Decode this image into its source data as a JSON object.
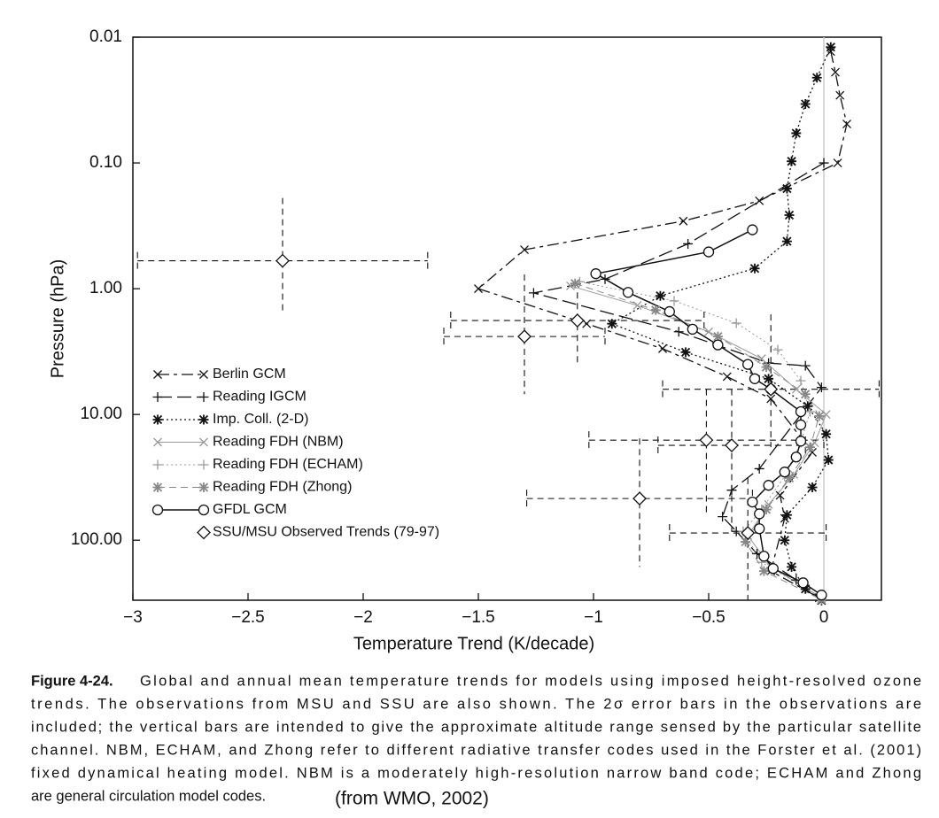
{
  "chart_data": {
    "type": "profile",
    "xlabel": "Temperature Trend (K/decade)",
    "ylabel": "Pressure (hPa)",
    "xlim": [
      -3,
      0.25
    ],
    "ylim": [
      0.01,
      300
    ],
    "ylog": true,
    "yinverted": true,
    "xticks": [
      {
        "value": -3,
        "label": "−3"
      },
      {
        "value": -2.5,
        "label": "−2.5"
      },
      {
        "value": -2,
        "label": "−2"
      },
      {
        "value": -1.5,
        "label": "−1.5"
      },
      {
        "value": -1,
        "label": "−1"
      },
      {
        "value": -0.5,
        "label": "−0.5"
      },
      0
    ],
    "yticks": [
      {
        "value": 0.01,
        "label": "0.01"
      },
      {
        "value": 0.1,
        "label": "0.10"
      },
      {
        "value": 1,
        "label": "1.00"
      },
      {
        "value": 10,
        "label": "10.00"
      },
      {
        "value": 100,
        "label": "100.00"
      }
    ],
    "series": [
      {
        "name": "Berlin GCM",
        "color": "#111111",
        "marker": "x",
        "dash": "13 5 4 5",
        "width": 1.3,
        "x": [
          0.03,
          0.05,
          0.07,
          0.1,
          0.06,
          -0.28,
          -0.61,
          -1.3,
          -1.5,
          -1.03,
          -0.7,
          -0.42,
          -0.23,
          -0.05,
          -0.19,
          -0.17,
          -0.23,
          -0.02
        ],
        "y": [
          0.013,
          0.019,
          0.029,
          0.049,
          0.1,
          0.2,
          0.29,
          0.49,
          1.0,
          1.9,
          3.0,
          5.0,
          7.5,
          20,
          44,
          67,
          176,
          287
        ]
      },
      {
        "name": "Reading IGCM",
        "color": "#111111",
        "marker": "+",
        "dash": "16 6",
        "width": 1.3,
        "x": [
          0,
          -0.59,
          -0.95,
          -1.26,
          -0.63,
          -0.24,
          -0.08,
          -0.01,
          -0.28,
          -0.4,
          -0.44,
          -0.38,
          -0.29,
          -0.12,
          -0.01
        ],
        "y": [
          0.1,
          0.44,
          0.84,
          1.08,
          2.2,
          3.9,
          4.1,
          6.1,
          27,
          40,
          65,
          85,
          128,
          207,
          301
        ]
      },
      {
        "name": "Imp. Coll. (2-D)",
        "color": "#111111",
        "marker": "*",
        "dash": "2 3",
        "width": 1.3,
        "x": [
          0.03,
          -0.03,
          -0.08,
          -0.12,
          -0.14,
          -0.16,
          -0.15,
          -0.16,
          -0.3,
          -0.71,
          -0.92,
          -0.6,
          -0.24,
          -0.07,
          0.01,
          0.02,
          -0.05,
          -0.16,
          -0.17,
          -0.14,
          -0.08,
          -0.01
        ],
        "y": [
          0.012,
          0.021,
          0.034,
          0.058,
          0.097,
          0.16,
          0.26,
          0.42,
          0.69,
          1.14,
          1.9,
          3.2,
          5.2,
          8.6,
          14.3,
          23,
          38,
          63,
          100,
          163,
          244,
          301
        ]
      },
      {
        "name": "Reading FDH (NBM)",
        "color": "#999999",
        "marker": "x",
        "dash": "",
        "width": 1,
        "x": [
          -1.1,
          -0.81,
          -0.5,
          -0.27,
          -0.12,
          0.01,
          -0.04,
          -0.13,
          -0.24,
          -0.33,
          -0.23,
          -0.01
        ],
        "y": [
          0.95,
          1.36,
          2.2,
          3.6,
          6.3,
          10,
          16.8,
          30,
          52,
          92,
          163,
          286
        ]
      },
      {
        "name": "Reading FDH (ECHAM)",
        "color": "#999999",
        "marker": "+",
        "dash": "2 3",
        "width": 1,
        "x": [
          -1.06,
          -0.65,
          -0.38,
          -0.2,
          -0.1,
          -0.06,
          -0.1,
          -0.17,
          -0.27,
          -0.35,
          -0.27,
          -0.01
        ],
        "y": [
          0.88,
          1.25,
          1.88,
          3.06,
          5.4,
          9.5,
          16.8,
          31,
          57,
          85,
          150,
          286
        ]
      },
      {
        "name": "Reading FDH (Zhong)",
        "color": "#888888",
        "marker": "*",
        "dash": "8 5",
        "width": 1,
        "x": [
          -1.08,
          -0.73,
          -0.46,
          -0.25,
          -0.08,
          -0.02,
          -0.06,
          -0.15,
          -0.25,
          -0.34,
          -0.26,
          -0.01
        ],
        "y": [
          0.91,
          1.48,
          2.4,
          4.2,
          6.9,
          10.3,
          18.2,
          32,
          57,
          103,
          176,
          297
        ]
      },
      {
        "name": "GFDL GCM",
        "color": "#111111",
        "marker": "o",
        "dash": "",
        "width": 1.5,
        "x": [
          -0.31,
          -0.5,
          -0.99,
          -0.85,
          -0.67,
          -0.57,
          -0.46,
          -0.33,
          -0.3,
          -0.23,
          -0.1,
          -0.1,
          -0.1,
          -0.12,
          -0.17,
          -0.24,
          -0.31,
          -0.28,
          -0.28,
          -0.26,
          -0.22,
          -0.09,
          -0.01
        ],
        "y": [
          0.34,
          0.51,
          0.76,
          1.07,
          1.52,
          2.1,
          2.8,
          4.0,
          5.2,
          6.3,
          9.5,
          12.1,
          16.3,
          21.8,
          28.7,
          36.6,
          49.7,
          61.7,
          81,
          134,
          168,
          218,
          273
        ]
      }
    ],
    "observations": {
      "name": "SSU/MSU Observed Trends (79-97)",
      "color": "#111111",
      "marker": "diamond",
      "x": [
        -2.35,
        -1.07,
        -1.3,
        -0.23,
        -0.51,
        -0.4,
        -0.8,
        -0.33
      ],
      "y": [
        0.6,
        1.79,
        2.4,
        6.3,
        16,
        17.6,
        46.6,
        87.6
      ],
      "xerr": [
        0.63,
        0.55,
        0.35,
        0.47,
        0.51,
        0.32,
        0.49,
        0.34
      ],
      "ylow": [
        0.19,
        1.07,
        0.77,
        1.6,
        6.3,
        6.3,
        15.5,
        32
      ],
      "yhigh": [
        1.6,
        4.0,
        6.9,
        18.2,
        61,
        85,
        163,
        300
      ]
    },
    "caption_label": "Figure 4-24.",
    "caption_lines": [
      "Global and annual mean temperature trends for models using imposed height-resolved ozone",
      "trends.  The observations from MSU and SSU are also shown.  The 2σ error bars in the observations are",
      "included; the vertical bars are intended to give the approximate altitude range sensed by the particular satellite",
      "channel.  NBM, ECHAM, and Zhong refer to different radiative transfer codes used in the Forster et al. (2001)",
      "fixed dynamical heating model.  NBM is a moderately high-resolution narrow band code; ECHAM and Zhong",
      "are general circulation model codes."
    ],
    "source": "(from WMO, 2002)"
  }
}
